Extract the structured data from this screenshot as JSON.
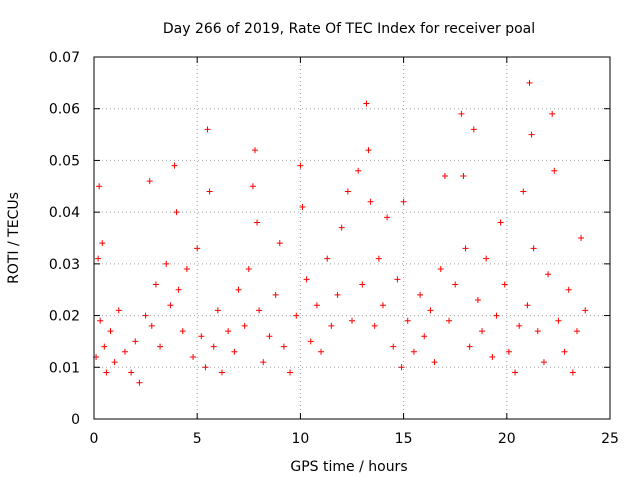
{
  "chart_data": {
    "type": "scatter",
    "title": "Day 266 of 2019, Rate Of TEC Index for receiver poal",
    "xlabel": "GPS time / hours",
    "ylabel": "ROTI / TECUs",
    "xlim": [
      0,
      25
    ],
    "ylim": [
      0,
      0.07
    ],
    "x_ticks": [
      "0",
      "5",
      "10",
      "15",
      "20",
      "25"
    ],
    "y_ticks": [
      "0",
      "0.01",
      "0.02",
      "0.03",
      "0.04",
      "0.05",
      "0.06",
      "0.07"
    ],
    "grid": "dotted",
    "marker": "+",
    "color": "#ff0000",
    "series": [
      {
        "x": [
          0.1,
          0.2,
          0.25,
          0.3,
          0.4,
          0.5,
          0.6,
          0.8,
          1.0,
          1.2,
          1.5,
          1.8,
          2.0,
          2.2,
          2.5,
          2.7,
          2.8,
          3.0,
          3.2,
          3.5,
          3.7,
          3.9,
          4.0,
          4.1,
          4.3,
          4.5,
          4.8,
          5.0,
          5.2,
          5.4,
          5.5,
          5.6,
          5.8,
          6.0,
          6.2,
          6.5,
          6.8,
          7.0,
          7.3,
          7.5,
          7.7,
          7.8,
          7.9,
          8.0,
          8.2,
          8.5,
          8.8,
          9.0,
          9.2,
          9.5,
          9.8,
          10.0,
          10.1,
          10.3,
          10.5,
          10.8,
          11.0,
          11.3,
          11.5,
          11.8,
          12.0,
          12.3,
          12.5,
          12.8,
          13.0,
          13.2,
          13.3,
          13.4,
          13.6,
          13.8,
          14.0,
          14.2,
          14.5,
          14.7,
          14.9,
          15.0,
          15.2,
          15.5,
          15.8,
          16.0,
          16.3,
          16.5,
          16.8,
          17.0,
          17.2,
          17.5,
          17.8,
          17.9,
          18.0,
          18.2,
          18.4,
          18.6,
          18.8,
          19.0,
          19.3,
          19.5,
          19.7,
          19.9,
          20.1,
          20.4,
          20.6,
          20.8,
          21.0,
          21.1,
          21.2,
          21.3,
          21.5,
          21.8,
          22.0,
          22.2,
          22.3,
          22.5,
          22.8,
          23.0,
          23.2,
          23.4,
          23.6,
          23.8
        ],
        "y": [
          0.012,
          0.031,
          0.045,
          0.019,
          0.034,
          0.014,
          0.009,
          0.017,
          0.011,
          0.021,
          0.013,
          0.009,
          0.015,
          0.007,
          0.02,
          0.046,
          0.018,
          0.026,
          0.014,
          0.03,
          0.022,
          0.049,
          0.04,
          0.025,
          0.017,
          0.029,
          0.012,
          0.033,
          0.016,
          0.01,
          0.056,
          0.044,
          0.014,
          0.021,
          0.009,
          0.017,
          0.013,
          0.025,
          0.018,
          0.029,
          0.045,
          0.052,
          0.038,
          0.021,
          0.011,
          0.016,
          0.024,
          0.034,
          0.014,
          0.009,
          0.02,
          0.049,
          0.041,
          0.027,
          0.015,
          0.022,
          0.013,
          0.031,
          0.018,
          0.024,
          0.037,
          0.044,
          0.019,
          0.048,
          0.026,
          0.061,
          0.052,
          0.042,
          0.018,
          0.031,
          0.022,
          0.039,
          0.014,
          0.027,
          0.01,
          0.042,
          0.019,
          0.013,
          0.024,
          0.016,
          0.021,
          0.011,
          0.029,
          0.047,
          0.019,
          0.026,
          0.059,
          0.047,
          0.033,
          0.014,
          0.056,
          0.023,
          0.017,
          0.031,
          0.012,
          0.02,
          0.038,
          0.026,
          0.013,
          0.009,
          0.018,
          0.044,
          0.022,
          0.065,
          0.055,
          0.033,
          0.017,
          0.011,
          0.028,
          0.059,
          0.048,
          0.019,
          0.013,
          0.025,
          0.009,
          0.017,
          0.035,
          0.021
        ]
      }
    ]
  }
}
